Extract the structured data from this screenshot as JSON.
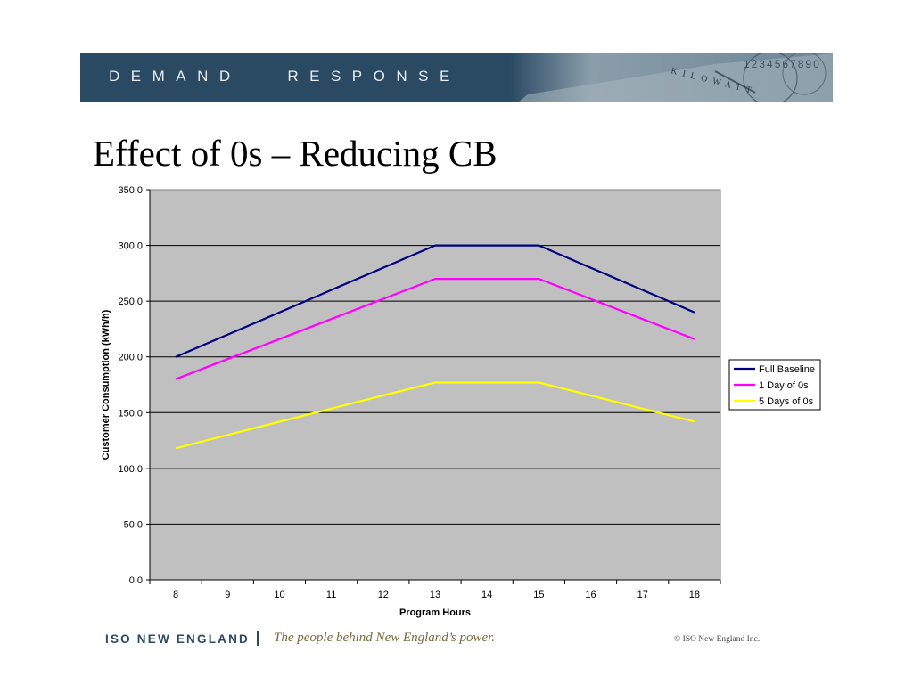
{
  "header": {
    "banner_text": "DEMAND   RESPONSE",
    "art_letters": "KILOWATT",
    "art_digits": "1234567890"
  },
  "slide": {
    "title": "Effect of 0s – Reducing CB"
  },
  "footer": {
    "brand": "ISO NEW ENGLAND",
    "tagline": "The people behind New England’s power.",
    "copyright": "© ISO New England Inc."
  },
  "colors": {
    "banner": "#2a4a64",
    "plot_background": "#c0c0c0",
    "full_baseline": "#000080",
    "one_day": "#ff00ff",
    "five_days": "#ffff00"
  },
  "chart_data": {
    "type": "line",
    "title": "",
    "xlabel": "Program Hours",
    "ylabel": "Customer Consumption (kWh/h)",
    "categories": [
      "8",
      "9",
      "10",
      "11",
      "12",
      "13",
      "14",
      "15",
      "16",
      "17",
      "18"
    ],
    "ylim": [
      0,
      350
    ],
    "yticks": [
      "0.0",
      "50.0",
      "100.0",
      "150.0",
      "200.0",
      "250.0",
      "300.0",
      "350.0"
    ],
    "grid": true,
    "legend_position": "right",
    "series": [
      {
        "name": "Full Baseline",
        "color": "#000080",
        "values": [
          200,
          220,
          240,
          260,
          280,
          300,
          300,
          300,
          280,
          260,
          240
        ]
      },
      {
        "name": "1 Day of 0s",
        "color": "#ff00ff",
        "values": [
          180,
          198,
          216,
          234,
          252,
          270,
          270,
          270,
          252,
          234,
          216
        ]
      },
      {
        "name": "5 Days of 0s",
        "color": "#ffff00",
        "values": [
          118,
          130,
          141.8,
          153.6,
          165.4,
          177,
          177,
          177,
          165.4,
          153.6,
          142
        ]
      }
    ]
  }
}
